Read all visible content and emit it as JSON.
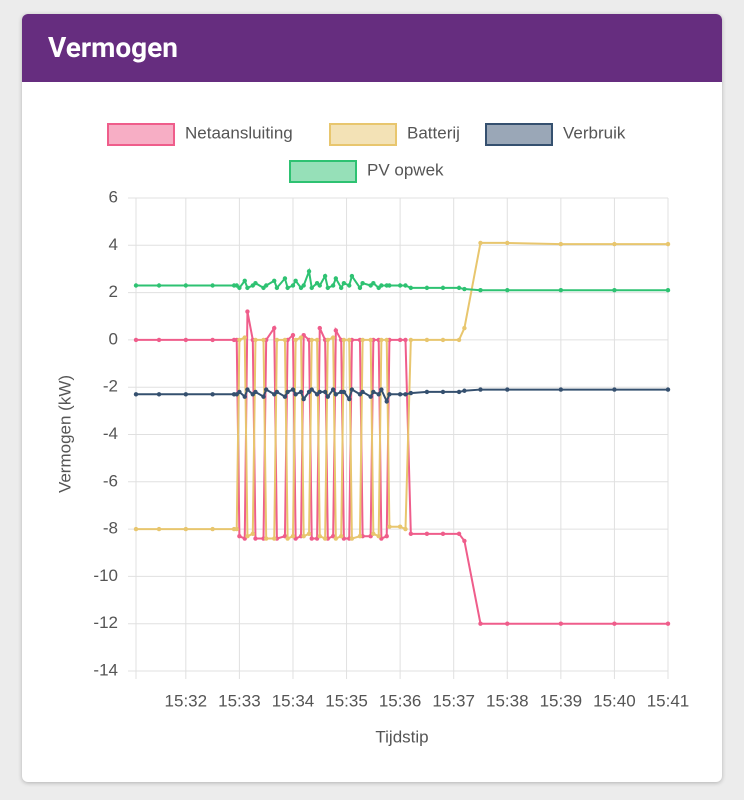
{
  "header": {
    "title": "Vermogen"
  },
  "chart_data": {
    "type": "line",
    "xlabel": "Tijdstip",
    "ylabel": "Vermogen (kW)",
    "x": [
      31.07,
      31.5,
      32,
      32.5,
      32.9,
      32.95,
      33,
      33.1,
      33.15,
      33.25,
      33.3,
      33.45,
      33.5,
      33.65,
      33.7,
      33.85,
      33.9,
      34,
      34.05,
      34.15,
      34.2,
      34.3,
      34.35,
      34.45,
      34.5,
      34.6,
      34.65,
      34.75,
      34.8,
      34.9,
      34.95,
      35.05,
      35.1,
      35.25,
      35.3,
      35.45,
      35.5,
      35.6,
      35.65,
      35.75,
      35.8,
      36,
      36.1,
      36.2,
      36.5,
      36.8,
      37.1,
      37.2,
      37.5,
      38,
      39,
      40,
      41
    ],
    "series": [
      {
        "name": "Netaansluiting",
        "color": "#ef5d8b",
        "values": [
          0,
          0,
          0,
          0,
          0,
          0,
          -8.3,
          -8.4,
          1.2,
          0,
          -8.4,
          -8.4,
          0,
          0.5,
          -8.4,
          -8.3,
          0,
          0.2,
          -8.4,
          -8.3,
          0.2,
          0,
          -8.4,
          -8.4,
          0.5,
          0,
          -8.4,
          -8.3,
          0.4,
          0,
          -8.4,
          -8.4,
          0,
          0,
          -8.3,
          -8.3,
          0,
          0,
          -8.4,
          -8.3,
          0,
          0,
          0,
          -8.2,
          -8.2,
          -8.2,
          -8.2,
          -8.5,
          -12,
          -12,
          -12,
          -12,
          -12
        ]
      },
      {
        "name": "Batterij",
        "color": "#e8c66e",
        "values": [
          -8,
          -8,
          -8,
          -8,
          -8,
          -8,
          0,
          0.1,
          -8.3,
          -8.2,
          0,
          0,
          -8.4,
          -8.4,
          0,
          0,
          -8.4,
          -8.3,
          0,
          0.1,
          -8.3,
          -8.2,
          0,
          0,
          -8.3,
          -8.4,
          0,
          0.1,
          -8.4,
          -8.3,
          0,
          0,
          -8.4,
          -8.3,
          0,
          0,
          -8.2,
          -8.3,
          0,
          0,
          -7.9,
          -7.9,
          -8,
          0,
          0,
          0,
          0,
          0.5,
          4.1,
          4.1,
          4.05,
          4.05,
          4.05
        ]
      },
      {
        "name": "Verbruik",
        "color": "#35506f",
        "values": [
          -2.3,
          -2.3,
          -2.3,
          -2.3,
          -2.3,
          -2.3,
          -2.2,
          -2.4,
          -2.1,
          -2.3,
          -2.2,
          -2.4,
          -2.1,
          -2.3,
          -2.2,
          -2.4,
          -2.2,
          -2.1,
          -2.3,
          -2.2,
          -2.5,
          -2.2,
          -2.1,
          -2.3,
          -2.2,
          -2.2,
          -2.4,
          -2.1,
          -2.3,
          -2.2,
          -2.2,
          -2.5,
          -2.1,
          -2.3,
          -2.2,
          -2.4,
          -2.2,
          -2.3,
          -2.1,
          -2.6,
          -2.3,
          -2.3,
          -2.3,
          -2.25,
          -2.2,
          -2.2,
          -2.2,
          -2.15,
          -2.1,
          -2.1,
          -2.1,
          -2.1,
          -2.1
        ]
      },
      {
        "name": "PV opwek",
        "color": "#2ec272",
        "values": [
          2.3,
          2.3,
          2.3,
          2.3,
          2.3,
          2.3,
          2.2,
          2.5,
          2.2,
          2.3,
          2.4,
          2.2,
          2.3,
          2.5,
          2.2,
          2.6,
          2.2,
          2.3,
          2.5,
          2.2,
          2.3,
          2.9,
          2.2,
          2.4,
          2.3,
          2.7,
          2.2,
          2.3,
          2.6,
          2.2,
          2.4,
          2.3,
          2.7,
          2.2,
          2.4,
          2.3,
          2.4,
          2.2,
          2.3,
          2.3,
          2.3,
          2.3,
          2.3,
          2.2,
          2.2,
          2.2,
          2.2,
          2.15,
          2.1,
          2.1,
          2.1,
          2.1,
          2.1
        ]
      }
    ],
    "xlim": [
      31.07,
      41
    ],
    "xticks": [
      {
        "value": 32,
        "label": "15:32"
      },
      {
        "value": 33,
        "label": "15:33"
      },
      {
        "value": 34,
        "label": "15:34"
      },
      {
        "value": 35,
        "label": "15:35"
      },
      {
        "value": 36,
        "label": "15:36"
      },
      {
        "value": 37,
        "label": "15:37"
      },
      {
        "value": 38,
        "label": "15:38"
      },
      {
        "value": 39,
        "label": "15:39"
      },
      {
        "value": 40,
        "label": "15:40"
      },
      {
        "value": 41,
        "label": "15:41"
      }
    ],
    "ylim": [
      -14,
      6
    ],
    "yticks": [
      -14,
      -12,
      -10,
      -8,
      -6,
      -4,
      -2,
      0,
      2,
      4,
      6
    ],
    "grid": true,
    "legend": "top"
  }
}
